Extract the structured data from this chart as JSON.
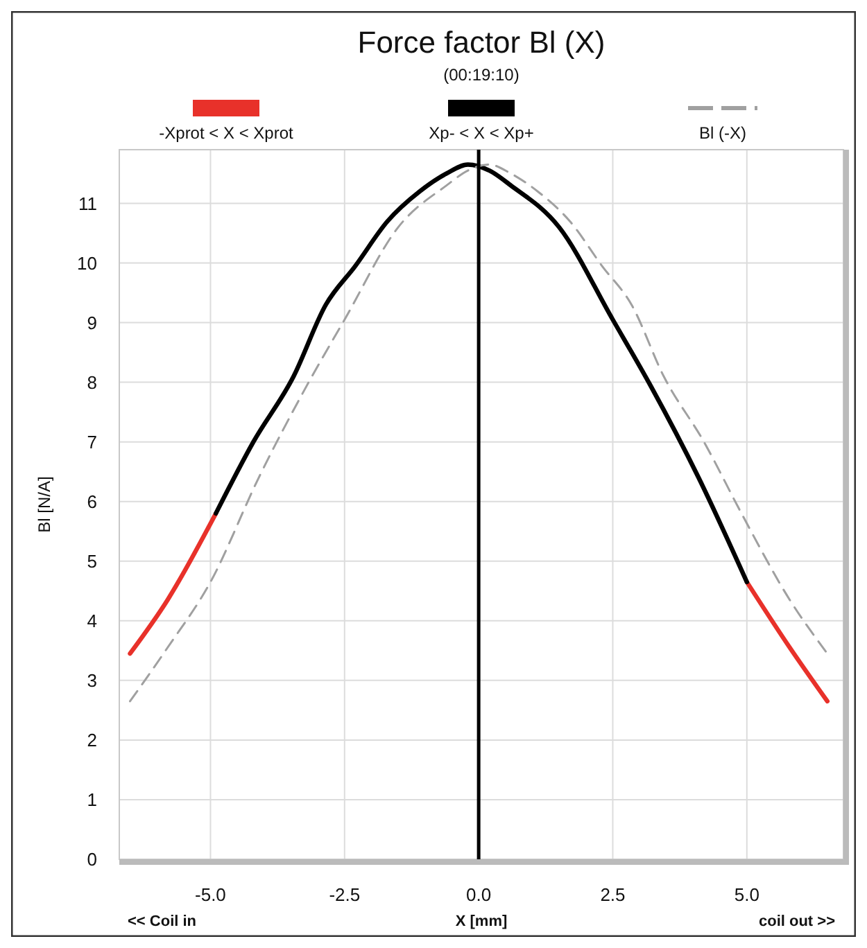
{
  "chart_data": {
    "type": "line",
    "title": "Force factor Bl (X)",
    "subtitle": "(00:19:10)",
    "xlabel": "X [mm]",
    "ylabel": "Bl [N/A]",
    "xlim": [
      -6.7,
      6.8
    ],
    "ylim": [
      0,
      11.9
    ],
    "xticks": [
      {
        "value": -5,
        "label": "-5.0"
      },
      {
        "value": -2.5,
        "label": "-2.5"
      },
      {
        "value": 0,
        "label": "0.0"
      },
      {
        "value": 2.5,
        "label": "2.5"
      },
      {
        "value": 5,
        "label": "5.0"
      }
    ],
    "yticks": [
      0,
      1,
      2,
      3,
      4,
      5,
      6,
      7,
      8,
      9,
      10,
      11
    ],
    "grid": true,
    "legend": "top",
    "line_style": "solid",
    "marker": "none",
    "ref_lines": [
      {
        "axis": "x",
        "value": 0,
        "color": "#000000"
      }
    ],
    "annotations": [
      "<< Coil in",
      "coil out >>"
    ],
    "series": [
      {
        "name": "-Xprot < X < Xprot",
        "color": "#e8312a",
        "x": [
          -6.5,
          -5.8,
          -4.9
        ],
        "values": [
          3.45,
          4.35,
          5.8
        ]
      },
      {
        "color": "#e8312a",
        "x": [
          5.0,
          5.8,
          6.5
        ],
        "values": [
          4.65,
          3.55,
          2.65
        ]
      },
      {
        "name": "Xp- < X < Xp+",
        "color": "#000000",
        "x": [
          -4.9,
          -4.2,
          -3.45,
          -2.85,
          -2.3,
          -1.7,
          -1.1,
          -0.6,
          -0.2,
          0.2,
          0.6,
          1.5,
          2.5,
          3.2,
          4.1,
          5.0
        ],
        "values": [
          5.8,
          7.0,
          8.1,
          9.3,
          9.95,
          10.7,
          11.2,
          11.5,
          11.65,
          11.55,
          11.3,
          10.6,
          9.05,
          7.95,
          6.4,
          4.65
        ]
      },
      {
        "name": "Bl (-X)",
        "color": "#a0a0a0",
        "line_style": "dashed",
        "x": [
          -6.5,
          -5.8,
          -5.0,
          -4.1,
          -3.2,
          -2.5,
          -1.5,
          -0.6,
          -0.2,
          0.2,
          0.6,
          1.1,
          1.7,
          2.3,
          2.85,
          3.45,
          4.2,
          4.9,
          5.8,
          6.5
        ],
        "values": [
          2.65,
          3.55,
          4.65,
          6.4,
          7.95,
          9.05,
          10.6,
          11.3,
          11.55,
          11.65,
          11.5,
          11.2,
          10.7,
          9.95,
          9.3,
          8.1,
          7.0,
          5.8,
          4.35,
          3.45
        ]
      }
    ]
  }
}
